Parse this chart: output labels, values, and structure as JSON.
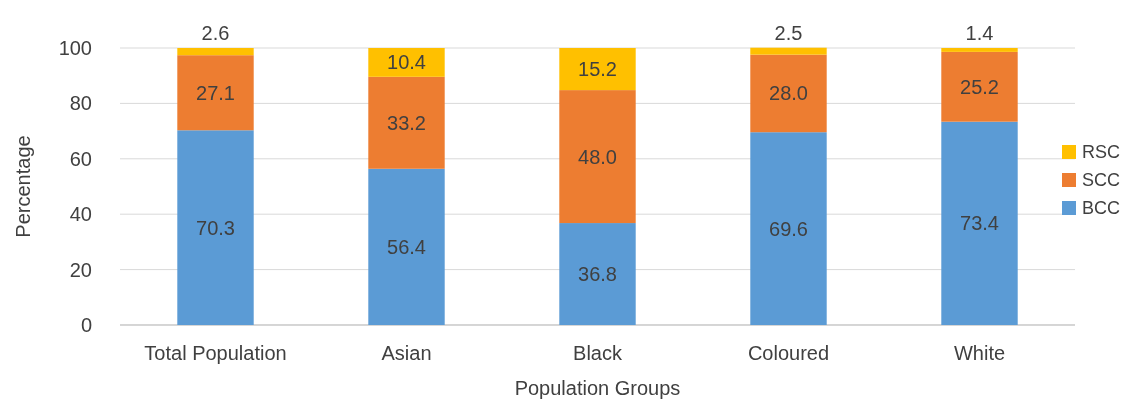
{
  "chart_data": {
    "type": "bar",
    "stacked": true,
    "xlabel": "Population Groups",
    "ylabel": "Percentage",
    "categories": [
      "Total Population",
      "Asian",
      "Black",
      "Coloured",
      "White"
    ],
    "series": [
      {
        "name": "BCC",
        "color": "#5b9bd5",
        "values": [
          70.3,
          56.4,
          36.8,
          69.6,
          73.4
        ],
        "value_labels": [
          "70.3",
          "56.4",
          "36.8",
          "69.6",
          "73.4"
        ]
      },
      {
        "name": "SCC",
        "color": "#ed7d31",
        "values": [
          27.1,
          33.2,
          48.0,
          28.0,
          25.2
        ],
        "value_labels": [
          "27.1",
          "33.2",
          "48.0",
          "28.0",
          "25.2"
        ]
      },
      {
        "name": "RSC",
        "color": "#ffc000",
        "values": [
          2.6,
          10.4,
          15.2,
          2.5,
          1.4
        ],
        "value_labels": [
          "2.6",
          "10.4",
          "15.2",
          "2.5",
          "1.4"
        ]
      }
    ],
    "ylim": [
      0,
      100
    ],
    "yticks": [
      0,
      20,
      40,
      60,
      80,
      100
    ],
    "grid": "y",
    "legend": "right"
  }
}
